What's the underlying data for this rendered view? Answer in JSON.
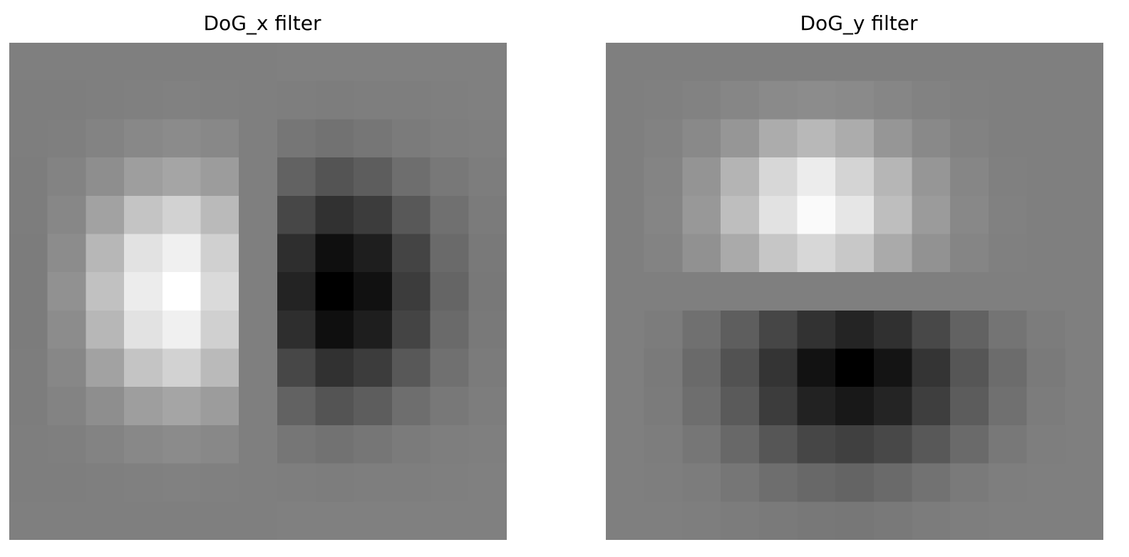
{
  "chart_data": [
    {
      "type": "heatmap",
      "title": "DoG_x filter",
      "colormap": "gray",
      "axes_visible": false,
      "grid": false,
      "rows": 13,
      "cols": 13,
      "value_range": [
        0,
        255
      ],
      "values": [
        [
          127,
          127,
          127,
          127,
          127,
          127,
          127,
          128,
          128,
          128,
          128,
          128,
          128
        ],
        [
          126,
          126,
          127,
          128,
          129,
          128,
          127,
          126,
          125,
          126,
          126,
          127,
          128
        ],
        [
          126,
          127,
          131,
          136,
          139,
          136,
          127,
          118,
          114,
          118,
          123,
          126,
          127
        ],
        [
          125,
          131,
          142,
          158,
          165,
          156,
          127,
          98,
          84,
          93,
          110,
          120,
          125
        ],
        [
          125,
          135,
          162,
          196,
          210,
          186,
          127,
          71,
          49,
          60,
          88,
          112,
          123
        ],
        [
          124,
          140,
          183,
          226,
          240,
          208,
          127,
          46,
          15,
          30,
          68,
          106,
          121
        ],
        [
          124,
          145,
          193,
          236,
          255,
          218,
          127,
          35,
          0,
          17,
          60,
          101,
          120
        ],
        [
          124,
          140,
          183,
          226,
          240,
          208,
          127,
          46,
          15,
          30,
          68,
          106,
          121
        ],
        [
          125,
          135,
          162,
          196,
          210,
          186,
          127,
          71,
          49,
          60,
          88,
          112,
          123
        ],
        [
          125,
          131,
          142,
          158,
          165,
          156,
          127,
          98,
          84,
          93,
          110,
          120,
          125
        ],
        [
          126,
          127,
          131,
          136,
          139,
          136,
          127,
          118,
          114,
          118,
          123,
          126,
          127
        ],
        [
          126,
          126,
          127,
          128,
          129,
          128,
          127,
          126,
          125,
          126,
          126,
          127,
          128
        ],
        [
          127,
          127,
          127,
          127,
          127,
          127,
          127,
          128,
          128,
          128,
          128,
          128,
          128
        ]
      ]
    },
    {
      "type": "heatmap",
      "title": "DoG_y filter",
      "colormap": "gray",
      "axes_visible": false,
      "grid": false,
      "rows": 13,
      "cols": 13,
      "value_range": [
        0,
        255
      ],
      "values": [
        [
          127,
          127,
          127,
          127,
          127,
          127,
          127,
          127,
          127,
          127,
          127,
          127,
          127
        ],
        [
          127,
          128,
          130,
          134,
          138,
          140,
          138,
          134,
          130,
          128,
          127,
          127,
          127
        ],
        [
          127,
          130,
          137,
          150,
          172,
          184,
          172,
          150,
          137,
          130,
          127,
          127,
          127
        ],
        [
          127,
          132,
          148,
          180,
          215,
          236,
          212,
          182,
          150,
          134,
          128,
          127,
          127
        ],
        [
          127,
          133,
          152,
          190,
          226,
          250,
          230,
          190,
          155,
          136,
          129,
          127,
          127
        ],
        [
          127,
          131,
          145,
          170,
          198,
          215,
          200,
          170,
          146,
          133,
          128,
          127,
          127
        ],
        [
          127,
          127,
          127,
          127,
          127,
          127,
          127,
          127,
          127,
          127,
          127,
          127,
          127
        ],
        [
          127,
          124,
          112,
          94,
          70,
          50,
          36,
          48,
          72,
          98,
          116,
          124,
          127
        ],
        [
          127,
          122,
          106,
          82,
          52,
          18,
          0,
          20,
          52,
          86,
          108,
          122,
          127
        ],
        [
          127,
          123,
          110,
          90,
          60,
          34,
          24,
          36,
          62,
          92,
          112,
          124,
          127
        ],
        [
          127,
          125,
          118,
          104,
          86,
          70,
          64,
          72,
          88,
          106,
          120,
          126,
          127
        ],
        [
          127,
          126,
          124,
          118,
          110,
          104,
          100,
          106,
          114,
          122,
          126,
          127,
          127
        ],
        [
          127,
          127,
          126,
          124,
          122,
          120,
          119,
          121,
          124,
          126,
          127,
          127,
          127
        ]
      ]
    }
  ]
}
